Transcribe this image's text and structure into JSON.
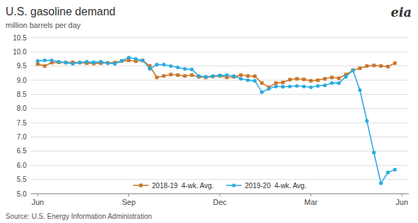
{
  "chart_data": {
    "type": "line",
    "title": "U.S. gasoline demand",
    "subtitle": "million barrels per day",
    "source": "Source: U.S. Energy Information Administration",
    "annotations": [
      "eia"
    ],
    "x": [
      0,
      1,
      2,
      3,
      4,
      5,
      6,
      7,
      8,
      9,
      10,
      11,
      12,
      13,
      14,
      15,
      16,
      17,
      18,
      19,
      20,
      21,
      22,
      23,
      24,
      25,
      26,
      27,
      28,
      29,
      30,
      31,
      32,
      33,
      34,
      35,
      36,
      37,
      38,
      39,
      40,
      41,
      42,
      43,
      44,
      45,
      46,
      47,
      48,
      49,
      50,
      51
    ],
    "xlim": [
      -1,
      53
    ],
    "xticks": [
      {
        "value": 0,
        "label": "Jun"
      },
      {
        "value": 13,
        "label": "Sep"
      },
      {
        "value": 26,
        "label": "Dec"
      },
      {
        "value": 39,
        "label": "Mar"
      },
      {
        "value": 52,
        "label": "Jun"
      }
    ],
    "ylim": [
      5.0,
      10.5
    ],
    "yticks": [
      {
        "value": 5,
        "label": "5.0"
      },
      5.5,
      {
        "value": 6,
        "label": "6.0"
      },
      6.5,
      {
        "value": 7,
        "label": "7.0"
      },
      7.5,
      {
        "value": 8,
        "label": "8.0"
      },
      8.5,
      {
        "value": 9,
        "label": "9.0"
      },
      9.5,
      {
        "value": 10,
        "label": "10.0"
      },
      10.5
    ],
    "grid": true,
    "legend": "bottom",
    "series": [
      {
        "name": "2018-19  4-wk. Avg.",
        "color": "#C8762B",
        "marker": "square",
        "values": [
          9.57,
          9.5,
          9.62,
          9.63,
          9.62,
          9.63,
          9.62,
          9.6,
          9.59,
          9.6,
          9.61,
          9.62,
          9.68,
          9.7,
          9.67,
          9.69,
          9.5,
          9.1,
          9.15,
          9.2,
          9.18,
          9.15,
          9.18,
          9.12,
          9.1,
          9.13,
          9.15,
          9.1,
          9.12,
          9.18,
          9.15,
          9.14,
          8.9,
          8.75,
          8.9,
          8.92,
          9.02,
          9.05,
          9.03,
          8.98,
          9.0,
          9.05,
          9.1,
          9.07,
          9.2,
          9.35,
          9.42,
          9.5,
          9.52,
          9.5,
          9.48,
          9.6
        ]
      },
      {
        "name": "2019-20  4-wk. Avg.",
        "color": "#29ABE2",
        "marker": "circle",
        "values": [
          9.68,
          9.7,
          9.7,
          9.65,
          9.62,
          9.58,
          9.62,
          9.65,
          9.63,
          9.65,
          9.6,
          9.58,
          9.68,
          9.8,
          9.75,
          9.7,
          9.4,
          9.55,
          9.55,
          9.5,
          9.45,
          9.4,
          9.38,
          9.15,
          9.12,
          9.15,
          9.17,
          9.18,
          9.15,
          9.05,
          9.0,
          8.98,
          8.58,
          8.7,
          8.78,
          8.77,
          8.78,
          8.8,
          8.78,
          8.75,
          8.8,
          8.82,
          8.9,
          8.9,
          9.12,
          9.35,
          8.65,
          7.57,
          6.45,
          5.37,
          5.75,
          5.85
        ]
      }
    ]
  }
}
